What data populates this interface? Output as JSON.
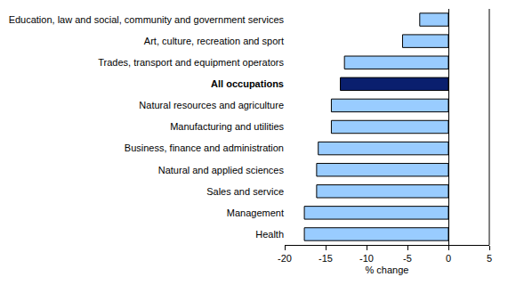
{
  "chart_data": {
    "type": "bar",
    "orientation": "horizontal",
    "categories": [
      "Education, law and social, community and government services",
      "Art, culture, recreation and sport",
      "Trades, transport and equipment operators",
      "All occupations",
      "Natural resources and agriculture",
      "Manufacturing and utilities",
      "Business, finance and administration",
      "Natural and applied sciences",
      "Sales and service",
      "Management",
      "Health"
    ],
    "values": [
      -3.5,
      -5.6,
      -12.7,
      -13.2,
      -14.3,
      -14.3,
      -15.9,
      -16.1,
      -16.1,
      -17.6,
      -17.6
    ],
    "colors": [
      "#99ccff",
      "#99ccff",
      "#99ccff",
      "#0a1f6e",
      "#99ccff",
      "#99ccff",
      "#99ccff",
      "#99ccff",
      "#99ccff",
      "#99ccff",
      "#99ccff"
    ],
    "xlabel": "% change",
    "xlim": [
      -20,
      5
    ],
    "xticks": [
      -20,
      -15,
      -10,
      -5,
      0,
      5
    ],
    "grid": false
  }
}
